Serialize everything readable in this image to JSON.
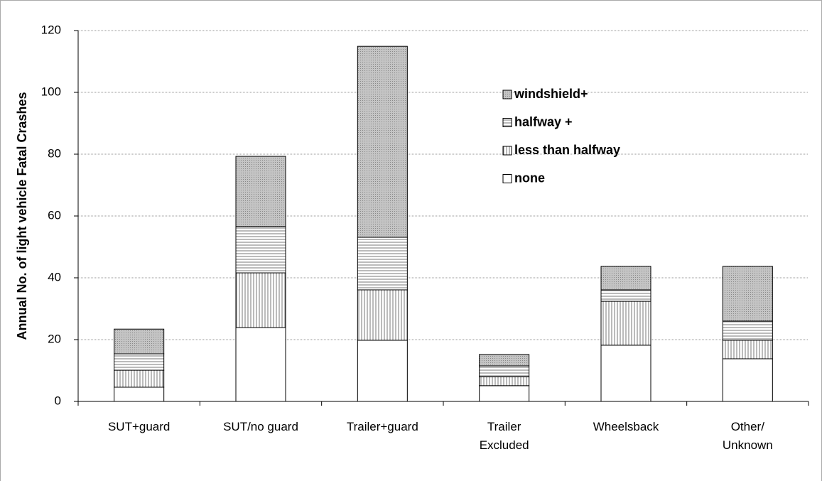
{
  "chart_data": {
    "type": "stacked_bar",
    "y_label": "Annual No. of light vehicle Fatal Crashes",
    "categories": [
      "SUT+guard",
      "SUT/no guard",
      "Trailer+guard",
      "Trailer\nExcluded",
      "Wheelsback",
      "Other/\nUnknown"
    ],
    "series": [
      {
        "name": "none",
        "color": "#ffffff",
        "hatch": "none",
        "values": [
          4.6,
          23.9,
          19.8,
          5.1,
          18.2,
          13.8
        ]
      },
      {
        "name": "less than halfway",
        "color": "#ffffff",
        "hatch": "vertical",
        "values": [
          5.5,
          17.7,
          16.3,
          2.9,
          14.2,
          6.0
        ]
      },
      {
        "name": "halfway +",
        "color": "#ffffff",
        "hatch": "horizontal",
        "values": [
          5.3,
          15.0,
          17.0,
          3.5,
          3.7,
          6.2
        ]
      },
      {
        "name": "windshield+",
        "color": "#c4c4c4",
        "hatch": "dots",
        "values": [
          8.0,
          22.7,
          61.8,
          3.7,
          7.6,
          17.7
        ]
      }
    ],
    "ylim": [
      0,
      120
    ],
    "yticks": [
      0,
      20,
      40,
      60,
      80,
      100,
      120
    ],
    "grid": true,
    "legend": "upper right"
  }
}
